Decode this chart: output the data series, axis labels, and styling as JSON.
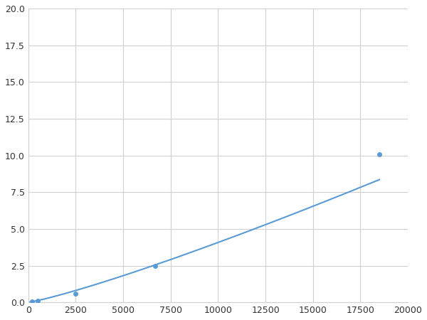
{
  "x": [
    200,
    500,
    2500,
    6700,
    18500
  ],
  "y": [
    0.05,
    0.12,
    0.6,
    2.5,
    10.1
  ],
  "line_color": "#5b9bd5",
  "marker_color": "#5b9bd5",
  "marker_size": 5,
  "line_width": 1.5,
  "xlim": [
    0,
    20000
  ],
  "ylim": [
    0,
    20.0
  ],
  "xticks": [
    0,
    2500,
    5000,
    7500,
    10000,
    12500,
    15000,
    17500,
    20000
  ],
  "yticks": [
    0.0,
    2.5,
    5.0,
    7.5,
    10.0,
    12.5,
    15.0,
    17.5,
    20.0
  ],
  "grid_color": "#d0d0d0",
  "background_color": "#ffffff",
  "figure_background": "#ffffff"
}
